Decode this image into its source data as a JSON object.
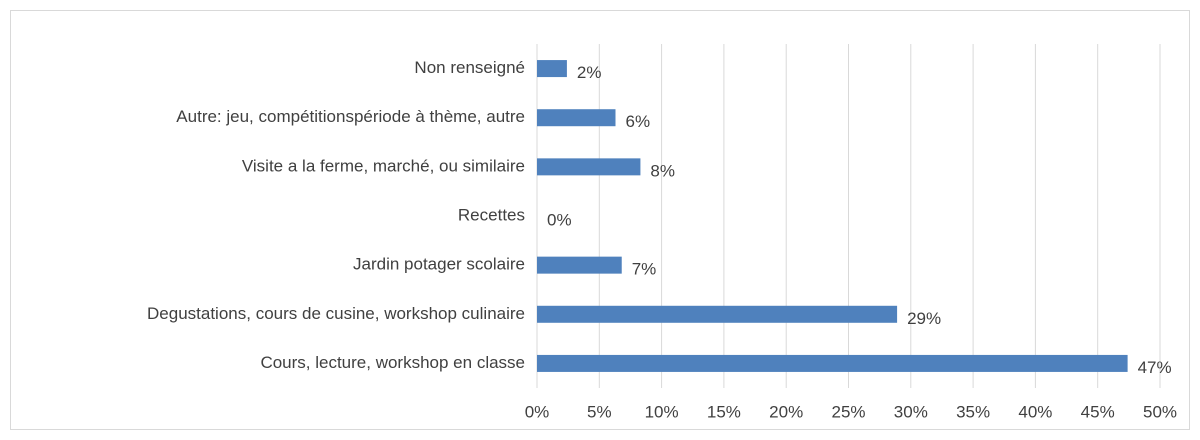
{
  "chart_data": {
    "type": "barh",
    "categories": [
      "Non renseigné",
      "Autre: jeu, compétitionspériode à thème, autre",
      "Visite a la ferme, marché, ou similaire",
      "Recettes",
      "Jardin potager scolaire",
      "Degustations, cours de cusine, workshop culinaire",
      "Cours, lecture, workshop en classe"
    ],
    "values": [
      2.4,
      6.3,
      8.3,
      0,
      6.8,
      28.9,
      47.4
    ],
    "value_labels": [
      "2%",
      "6%",
      "8%",
      "0%",
      "7%",
      "29%",
      "47%"
    ],
    "color": "#4f81bd",
    "xlim": [
      0,
      50
    ],
    "xticks": [
      {
        "value": 0,
        "label": "0%"
      },
      {
        "value": 5,
        "label": "5%"
      },
      {
        "value": 10,
        "label": "10%"
      },
      {
        "value": 15,
        "label": "15%"
      },
      {
        "value": 20,
        "label": "20%"
      },
      {
        "value": 25,
        "label": "25%"
      },
      {
        "value": 30,
        "label": "30%"
      },
      {
        "value": 35,
        "label": "35%"
      },
      {
        "value": 40,
        "label": "40%"
      },
      {
        "value": 45,
        "label": "45%"
      },
      {
        "value": 50,
        "label": "50%"
      }
    ],
    "grid": true
  }
}
